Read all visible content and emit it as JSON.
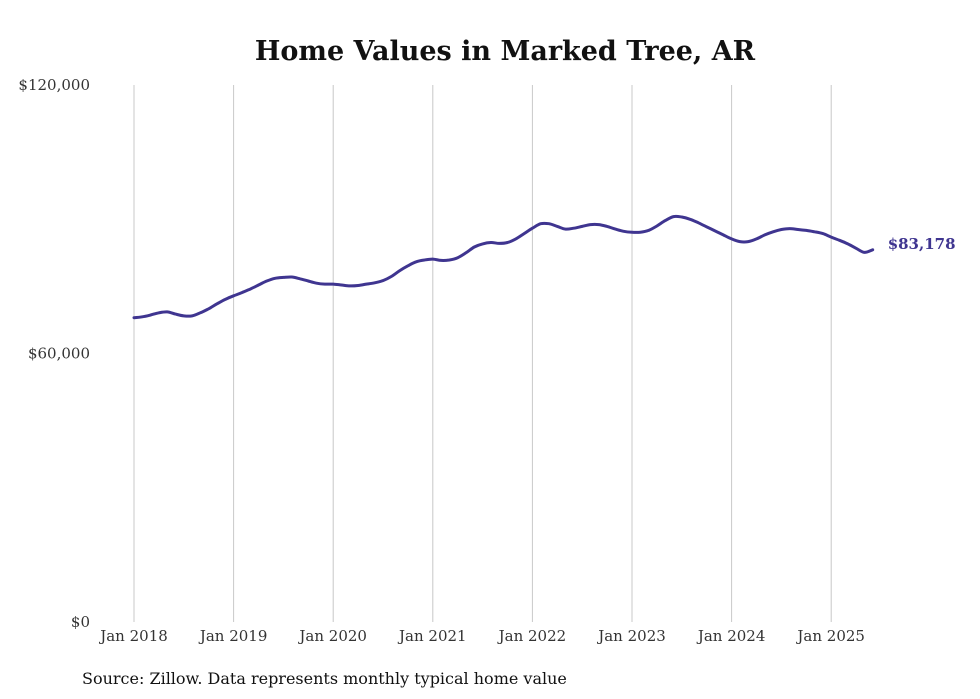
{
  "chart_data": {
    "type": "line",
    "title": "Home Values in Marked Tree, AR",
    "xlabel": "",
    "ylabel": "",
    "source": "Source: Zillow. Data represents monthly typical home value",
    "x_tick_labels": [
      "Jan 2018",
      "Jan 2019",
      "Jan 2020",
      "Jan 2021",
      "Jan 2022",
      "Jan 2023",
      "Jan 2024",
      "Jan 2025"
    ],
    "y_tick_labels": [
      "$0",
      "$60,000",
      "$120,000"
    ],
    "ylim": [
      0,
      120000
    ],
    "xlim": [
      "2018-01",
      "2025-06"
    ],
    "grid": "vertical lines at each January",
    "end_label": "$83,178",
    "colors": {
      "line": "#3f3590",
      "grid": "#c8c8c8"
    },
    "series": [
      {
        "x": [
          "2018-01",
          "2018-02",
          "2018-03",
          "2018-04",
          "2018-05",
          "2018-06",
          "2018-07",
          "2018-08",
          "2018-09",
          "2018-10",
          "2018-11",
          "2018-12",
          "2019-01",
          "2019-02",
          "2019-03",
          "2019-04",
          "2019-05",
          "2019-06",
          "2019-07",
          "2019-08",
          "2019-09",
          "2019-10",
          "2019-11",
          "2019-12",
          "2020-01",
          "2020-02",
          "2020-03",
          "2020-04",
          "2020-05",
          "2020-06",
          "2020-07",
          "2020-08",
          "2020-09",
          "2020-10",
          "2020-11",
          "2020-12",
          "2021-01",
          "2021-02",
          "2021-03",
          "2021-04",
          "2021-05",
          "2021-06",
          "2021-07",
          "2021-08",
          "2021-09",
          "2021-10",
          "2021-11",
          "2021-12",
          "2022-01",
          "2022-02",
          "2022-03",
          "2022-04",
          "2022-05",
          "2022-06",
          "2022-07",
          "2022-08",
          "2022-09",
          "2022-10",
          "2022-11",
          "2022-12",
          "2023-01",
          "2023-02",
          "2023-03",
          "2023-04",
          "2023-05",
          "2023-06",
          "2023-07",
          "2023-08",
          "2023-09",
          "2023-10",
          "2023-11",
          "2023-12",
          "2024-01",
          "2024-02",
          "2024-03",
          "2024-04",
          "2024-05",
          "2024-06",
          "2024-07",
          "2024-08",
          "2024-09",
          "2024-10",
          "2024-11",
          "2024-12",
          "2025-01",
          "2025-02",
          "2025-03",
          "2025-04",
          "2025-05",
          "2025-06"
        ],
        "values": [
          68000,
          68200,
          68600,
          69100,
          69300,
          68800,
          68400,
          68400,
          69100,
          70000,
          71100,
          72100,
          72900,
          73600,
          74400,
          75300,
          76200,
          76800,
          77000,
          77100,
          76700,
          76200,
          75700,
          75500,
          75500,
          75300,
          75100,
          75200,
          75500,
          75800,
          76300,
          77200,
          78500,
          79600,
          80500,
          80900,
          81100,
          80800,
          80900,
          81400,
          82500,
          83800,
          84500,
          84800,
          84600,
          84800,
          85600,
          86800,
          88000,
          89000,
          89000,
          88400,
          87800,
          88000,
          88400,
          88800,
          88800,
          88400,
          87800,
          87300,
          87100,
          87100,
          87500,
          88500,
          89700,
          90600,
          90500,
          90000,
          89200,
          88300,
          87400,
          86500,
          85600,
          85000,
          85000,
          85600,
          86500,
          87200,
          87700,
          87900,
          87700,
          87500,
          87200,
          86800,
          86000,
          85300,
          84500,
          83500,
          82600,
          83178
        ]
      }
    ]
  }
}
